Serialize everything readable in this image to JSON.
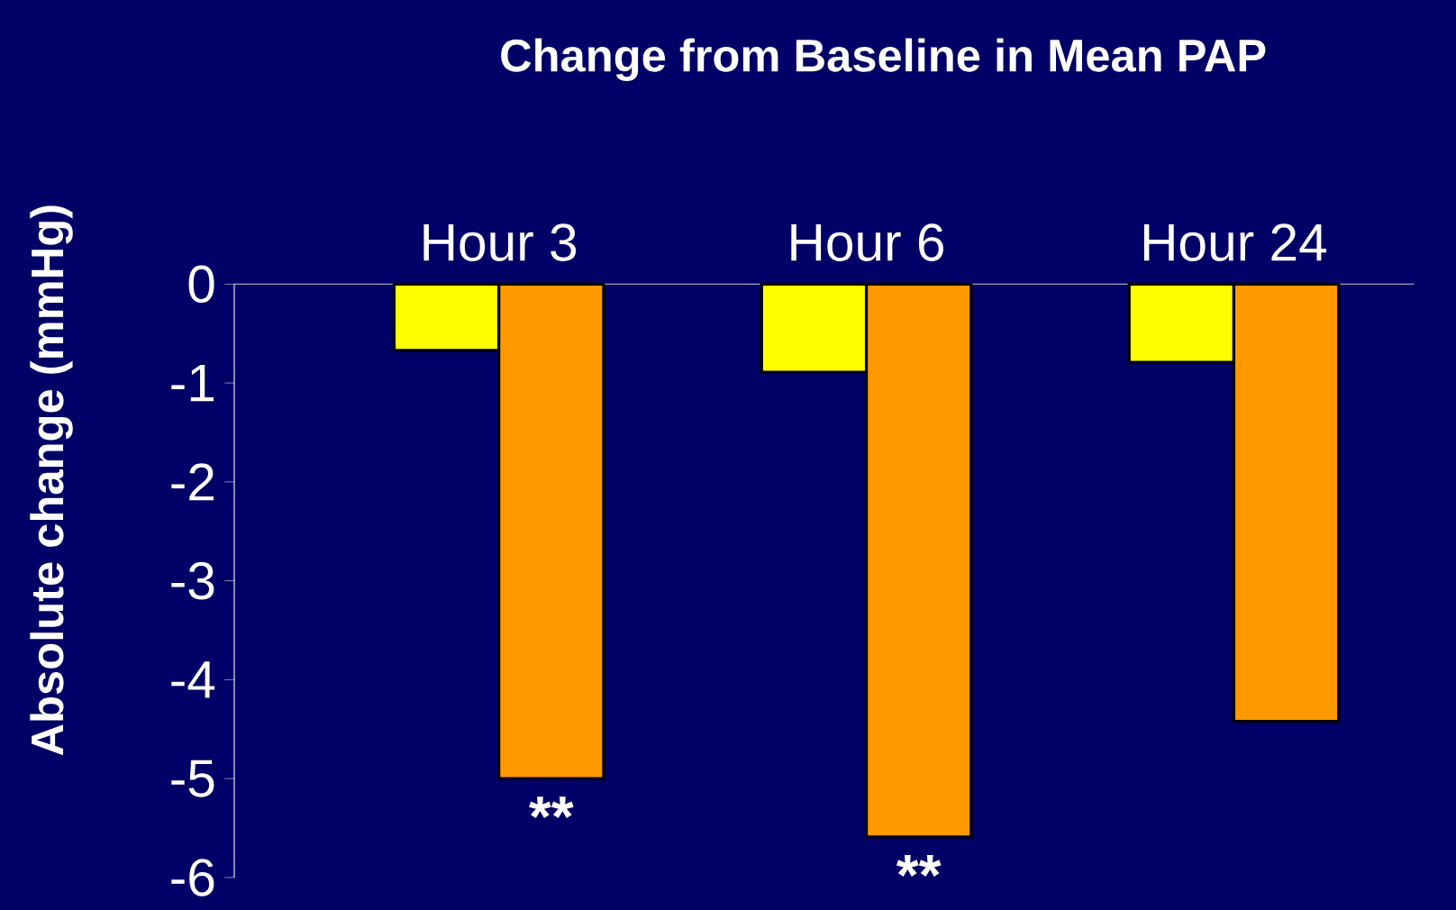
{
  "chart_data": {
    "type": "bar",
    "title": "Change from Baseline in Mean PAP",
    "ylabel": "Absolute change (mmHg)",
    "categories": [
      "Hour 3",
      "Hour 6",
      "Hour 24"
    ],
    "series": [
      {
        "color": "#ffff00",
        "values": [
          -0.67,
          -0.89,
          -0.79
        ]
      },
      {
        "color": "#ff9900",
        "values": [
          -5.0,
          -5.59,
          -4.42
        ]
      }
    ],
    "ylim": [
      -6,
      0
    ],
    "yticks": [
      0,
      -1,
      -2,
      -3,
      -4,
      -5,
      -6
    ],
    "annotations": [
      {
        "text": "**",
        "x": "Hour 3",
        "y": -5.0
      },
      {
        "text": "**",
        "x": "Hour 6",
        "y": -5.59
      }
    ],
    "legend": false
  }
}
